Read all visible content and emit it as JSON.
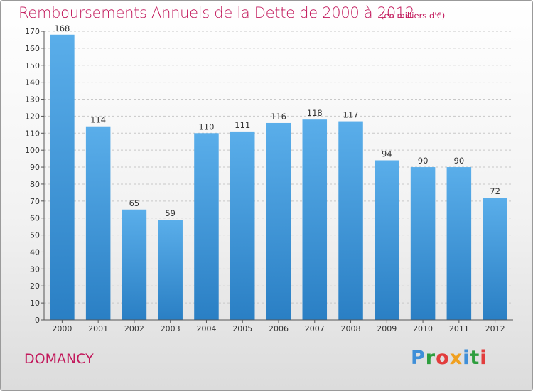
{
  "header": {
    "title": "Remboursements Annuels de la Dette de 2000 à 2012",
    "subtitle": "(en milliers d'€)"
  },
  "footer": {
    "commune": "DOMANCY",
    "logo": "Proxiti",
    "logo_colors": [
      "#3f8fd8",
      "#2e9e3e",
      "#e23d3d",
      "#f0a020",
      "#3f8fd8",
      "#2e9e3e",
      "#e23d3d"
    ]
  },
  "chart_data": {
    "type": "bar",
    "title": "Remboursements Annuels de la Dette de 2000 à 2012",
    "subtitle": "(en milliers d'€)",
    "xlabel": "",
    "ylabel": "",
    "categories": [
      "2000",
      "2001",
      "2002",
      "2003",
      "2004",
      "2005",
      "2006",
      "2007",
      "2008",
      "2009",
      "2010",
      "2011",
      "2012"
    ],
    "values": [
      168,
      114,
      65,
      59,
      110,
      111,
      116,
      118,
      117,
      94,
      90,
      90,
      72
    ],
    "ylim": [
      0,
      170
    ],
    "yticks": [
      0,
      10,
      20,
      30,
      40,
      50,
      60,
      70,
      80,
      90,
      100,
      110,
      120,
      130,
      140,
      150,
      160,
      170
    ],
    "grid": true,
    "bar_color_top": "#5aaeea",
    "bar_color_bottom": "#2a7fc4"
  }
}
